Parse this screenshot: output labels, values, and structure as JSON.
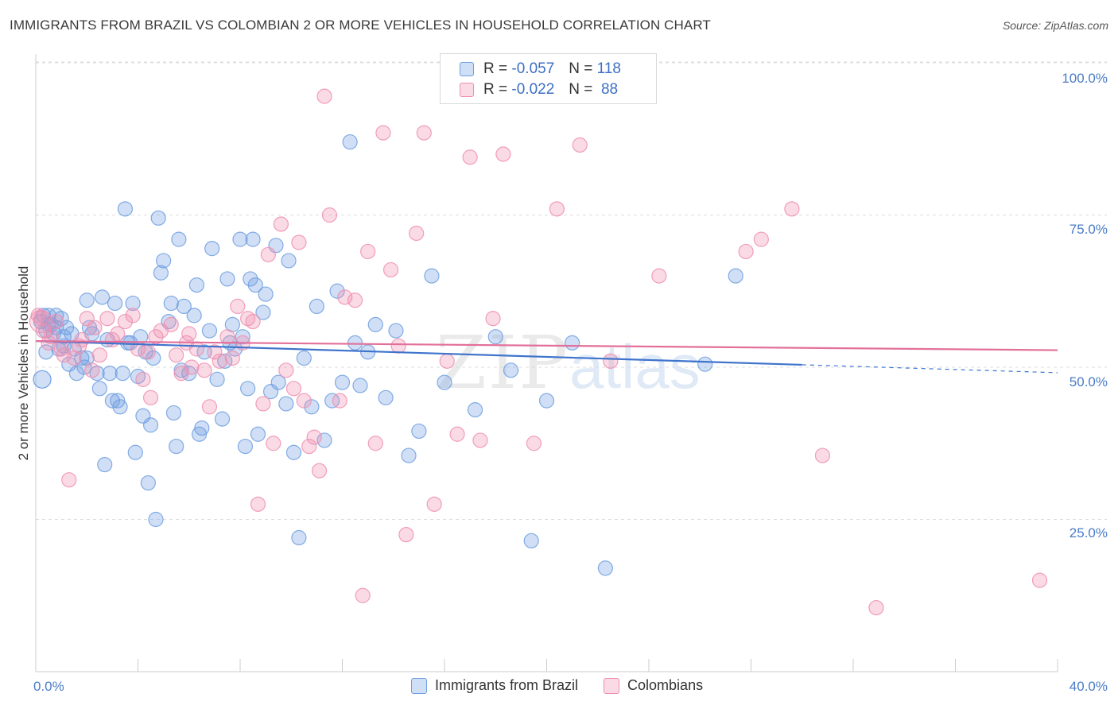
{
  "header": {
    "title": "IMMIGRANTS FROM BRAZIL VS COLOMBIAN 2 OR MORE VEHICLES IN HOUSEHOLD CORRELATION CHART",
    "source": "Source: ZipAtlas.com"
  },
  "watermark": {
    "part1": "ZIP",
    "part2": "atlas"
  },
  "legend": {
    "rows": [
      {
        "r_label": "R =",
        "r_value": "-0.057",
        "n_label": "N =",
        "n_value": "118",
        "color": "#6f9fe0"
      },
      {
        "r_label": "R =",
        "r_value": "-0.022",
        "n_label": "N =",
        "n_value": "88",
        "color": "#ef8fb0"
      }
    ]
  },
  "bottom_legend": [
    {
      "label": "Immigrants from Brazil",
      "color": "#6f9fe0"
    },
    {
      "label": "Colombians",
      "color": "#ef8fb0"
    }
  ],
  "chart_data": {
    "type": "scatter",
    "title": "IMMIGRANTS FROM BRAZIL VS COLOMBIAN 2 OR MORE VEHICLES IN HOUSEHOLD CORRELATION CHART",
    "ylabel": "2 or more Vehicles in Household",
    "xlim": [
      0,
      40
    ],
    "ylim": [
      0,
      105
    ],
    "x_tick_labels": {
      "min": "0.0%",
      "max": "40.0%"
    },
    "y_ticks": [
      25,
      50,
      75,
      100
    ],
    "y_tick_labels": [
      "25.0%",
      "50.0%",
      "75.0%",
      "100.0%"
    ],
    "grid": "horizontal dashed",
    "legend_position": "top-center",
    "series": [
      {
        "name": "Immigrants from Brazil",
        "color": "#6f9fe0",
        "trend": {
          "x": [
            0,
            30
          ],
          "y": [
            54.3,
            50.4
          ],
          "dashed_to": [
            40,
            49.1
          ]
        },
        "points": [
          [
            0.2,
            57.5
          ],
          [
            0.3,
            58.5
          ],
          [
            0.4,
            56
          ],
          [
            0.4,
            52.5
          ],
          [
            0.5,
            57
          ],
          [
            0.5,
            58.5
          ],
          [
            0.6,
            57
          ],
          [
            0.7,
            55.5
          ],
          [
            0.8,
            56.5
          ],
          [
            0.8,
            58.5
          ],
          [
            0.9,
            53
          ],
          [
            1.0,
            58
          ],
          [
            1.1,
            55
          ],
          [
            1.1,
            53.5
          ],
          [
            1.2,
            56.5
          ],
          [
            1.3,
            50.5
          ],
          [
            1.4,
            55.5
          ],
          [
            1.5,
            53
          ],
          [
            1.6,
            49
          ],
          [
            1.8,
            51.5
          ],
          [
            1.9,
            50
          ],
          [
            2.0,
            51.5
          ],
          [
            2.0,
            61
          ],
          [
            2.1,
            56.5
          ],
          [
            2.2,
            55.5
          ],
          [
            2.4,
            49
          ],
          [
            2.5,
            46.5
          ],
          [
            2.6,
            61.5
          ],
          [
            2.7,
            34
          ],
          [
            2.8,
            54.5
          ],
          [
            2.9,
            49
          ],
          [
            3.0,
            44.5
          ],
          [
            3.1,
            60.5
          ],
          [
            3.2,
            44.5
          ],
          [
            3.3,
            43.5
          ],
          [
            3.4,
            49
          ],
          [
            3.5,
            76
          ],
          [
            3.6,
            54
          ],
          [
            3.7,
            54
          ],
          [
            3.8,
            60.5
          ],
          [
            3.9,
            36
          ],
          [
            4.0,
            48.5
          ],
          [
            4.1,
            55
          ],
          [
            4.2,
            42
          ],
          [
            4.3,
            52.5
          ],
          [
            4.4,
            31
          ],
          [
            4.5,
            40.5
          ],
          [
            4.6,
            51.5
          ],
          [
            4.7,
            25
          ],
          [
            4.8,
            74.5
          ],
          [
            4.9,
            65.5
          ],
          [
            5.0,
            67.5
          ],
          [
            5.2,
            57.5
          ],
          [
            5.3,
            60.5
          ],
          [
            5.4,
            42.5
          ],
          [
            5.5,
            37
          ],
          [
            5.6,
            71
          ],
          [
            5.7,
            49.5
          ],
          [
            5.8,
            60
          ],
          [
            6.0,
            49
          ],
          [
            6.2,
            58.5
          ],
          [
            6.3,
            63.5
          ],
          [
            6.4,
            39
          ],
          [
            6.5,
            40
          ],
          [
            6.6,
            52.5
          ],
          [
            6.8,
            56
          ],
          [
            6.9,
            69.5
          ],
          [
            7.1,
            48
          ],
          [
            7.3,
            41.5
          ],
          [
            7.4,
            51
          ],
          [
            7.5,
            64.5
          ],
          [
            7.6,
            54
          ],
          [
            7.7,
            57
          ],
          [
            7.8,
            53
          ],
          [
            8.0,
            71
          ],
          [
            8.1,
            55
          ],
          [
            8.2,
            37
          ],
          [
            8.3,
            46.5
          ],
          [
            8.4,
            64.5
          ],
          [
            8.5,
            71
          ],
          [
            8.6,
            63.5
          ],
          [
            8.7,
            39
          ],
          [
            8.9,
            59
          ],
          [
            9.0,
            62
          ],
          [
            9.2,
            46
          ],
          [
            9.4,
            70
          ],
          [
            9.5,
            47.5
          ],
          [
            9.8,
            44
          ],
          [
            9.9,
            67.5
          ],
          [
            10.1,
            36
          ],
          [
            10.3,
            22
          ],
          [
            10.5,
            51.5
          ],
          [
            10.8,
            43.5
          ],
          [
            11.0,
            60
          ],
          [
            11.3,
            38
          ],
          [
            11.6,
            44.5
          ],
          [
            11.8,
            62.5
          ],
          [
            12.0,
            47.5
          ],
          [
            12.3,
            87
          ],
          [
            12.5,
            54
          ],
          [
            12.7,
            47
          ],
          [
            13.0,
            52.5
          ],
          [
            13.3,
            57
          ],
          [
            13.7,
            45
          ],
          [
            14.1,
            56
          ],
          [
            14.6,
            35.5
          ],
          [
            15.0,
            39.5
          ],
          [
            15.5,
            65
          ],
          [
            16.0,
            47.5
          ],
          [
            17.2,
            43
          ],
          [
            18.0,
            55
          ],
          [
            18.6,
            49.5
          ],
          [
            19.4,
            21.5
          ],
          [
            20.0,
            44.5
          ],
          [
            21.0,
            54
          ],
          [
            22.3,
            17
          ],
          [
            26.2,
            50.5
          ],
          [
            27.4,
            65
          ]
        ]
      },
      {
        "name": "Colombians",
        "color": "#ef8fb0",
        "trend": {
          "x": [
            0,
            40
          ],
          "y": [
            54.3,
            52.8
          ]
        },
        "points": [
          [
            0.2,
            58
          ],
          [
            0.3,
            56
          ],
          [
            0.6,
            55
          ],
          [
            0.8,
            57.5
          ],
          [
            1.0,
            53
          ],
          [
            1.1,
            52
          ],
          [
            1.3,
            31.5
          ],
          [
            1.5,
            51.5
          ],
          [
            1.8,
            54.5
          ],
          [
            2.0,
            58
          ],
          [
            2.3,
            56.5
          ],
          [
            2.5,
            52
          ],
          [
            2.8,
            58
          ],
          [
            3.0,
            54.5
          ],
          [
            3.2,
            55.5
          ],
          [
            3.5,
            57.5
          ],
          [
            3.8,
            58.5
          ],
          [
            4.0,
            53
          ],
          [
            4.2,
            48
          ],
          [
            4.5,
            45
          ],
          [
            4.7,
            55
          ],
          [
            4.9,
            56
          ],
          [
            5.3,
            57
          ],
          [
            5.5,
            52
          ],
          [
            5.7,
            49
          ],
          [
            5.9,
            54
          ],
          [
            6.1,
            50
          ],
          [
            6.3,
            53
          ],
          [
            6.6,
            49.5
          ],
          [
            6.8,
            43.5
          ],
          [
            7.0,
            52.5
          ],
          [
            7.2,
            51
          ],
          [
            7.5,
            55
          ],
          [
            7.7,
            51.5
          ],
          [
            7.9,
            60
          ],
          [
            8.1,
            54
          ],
          [
            8.3,
            58
          ],
          [
            8.5,
            57.5
          ],
          [
            8.7,
            27.5
          ],
          [
            8.9,
            44
          ],
          [
            9.1,
            68.5
          ],
          [
            9.3,
            37.5
          ],
          [
            9.6,
            73.5
          ],
          [
            9.8,
            49.5
          ],
          [
            10.1,
            46.5
          ],
          [
            10.3,
            70.5
          ],
          [
            10.5,
            44.5
          ],
          [
            10.7,
            37
          ],
          [
            10.9,
            38.5
          ],
          [
            11.1,
            33
          ],
          [
            11.3,
            94.5
          ],
          [
            11.5,
            75
          ],
          [
            11.9,
            44.5
          ],
          [
            12.1,
            61.5
          ],
          [
            12.5,
            61
          ],
          [
            12.8,
            12.5
          ],
          [
            13.0,
            69
          ],
          [
            13.3,
            37.5
          ],
          [
            13.6,
            88.5
          ],
          [
            13.9,
            66
          ],
          [
            14.2,
            53.5
          ],
          [
            14.5,
            22.5
          ],
          [
            14.9,
            72
          ],
          [
            15.2,
            88.5
          ],
          [
            15.6,
            27.5
          ],
          [
            16.1,
            51
          ],
          [
            16.5,
            39
          ],
          [
            17.0,
            84.5
          ],
          [
            17.4,
            38
          ],
          [
            17.9,
            58
          ],
          [
            18.3,
            85
          ],
          [
            19.5,
            37.5
          ],
          [
            20.4,
            76
          ],
          [
            21.3,
            86.5
          ],
          [
            22.5,
            51
          ],
          [
            24.4,
            65
          ],
          [
            27.8,
            69
          ],
          [
            28.4,
            71
          ],
          [
            29.6,
            76
          ],
          [
            30.8,
            35.5
          ],
          [
            32.9,
            10.5
          ],
          [
            39.3,
            15
          ],
          [
            0.1,
            58.5
          ],
          [
            0.5,
            54
          ],
          [
            1.7,
            53.5
          ],
          [
            2.2,
            49.5
          ],
          [
            4.4,
            52.5
          ],
          [
            6.0,
            55.5
          ]
        ]
      }
    ]
  }
}
